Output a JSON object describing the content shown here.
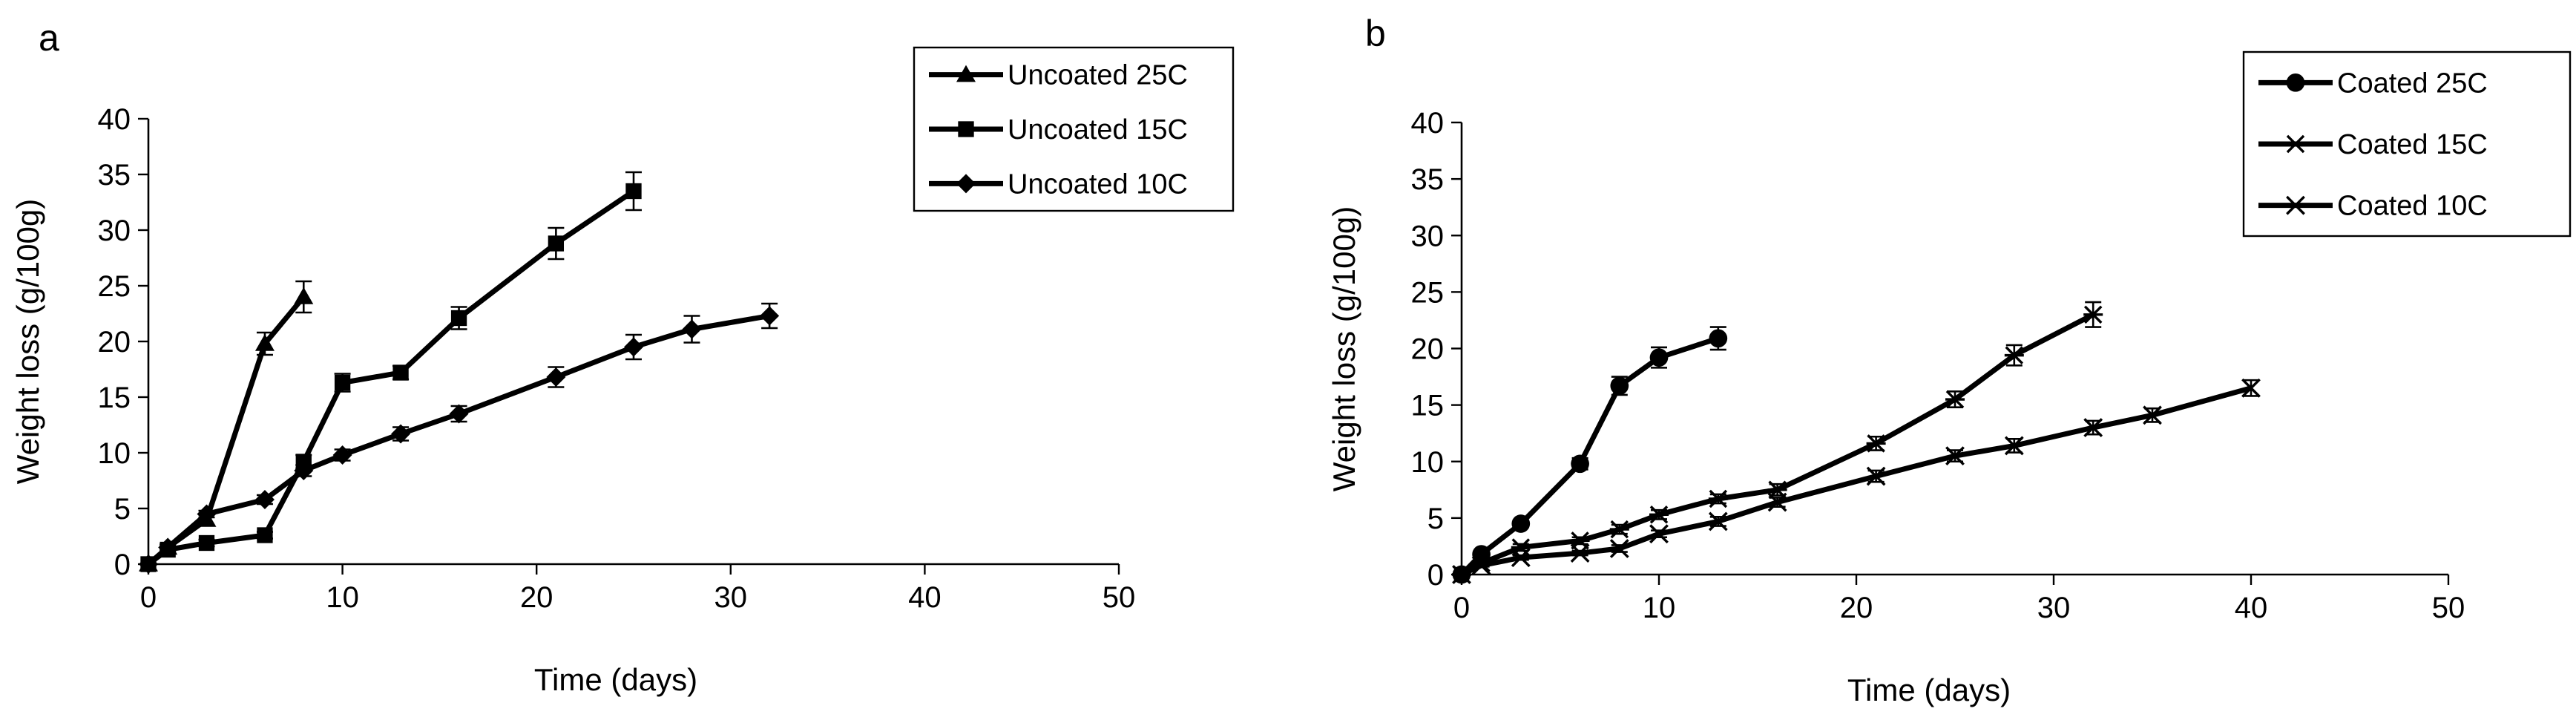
{
  "chart_data": [
    {
      "type": "line",
      "panel": "a",
      "xlabel": "Time (days)",
      "ylabel": "Weight loss (g/100g)",
      "xlim": [
        0,
        50
      ],
      "ylim": [
        0,
        40
      ],
      "xticks": [
        0,
        10,
        20,
        30,
        40,
        50
      ],
      "yticks": [
        0,
        5,
        10,
        15,
        20,
        25,
        30,
        35,
        40
      ],
      "grid": false,
      "legend_position": "top-right",
      "series": [
        {
          "name": "Uncoated 25C",
          "marker": "triangle",
          "x": [
            0,
            1,
            3,
            6,
            8
          ],
          "y": [
            0,
            1.5,
            4,
            19.8,
            24
          ],
          "err": [
            0,
            0.3,
            0.5,
            1.0,
            1.4
          ]
        },
        {
          "name": "Uncoated 15C",
          "marker": "square",
          "x": [
            0,
            1,
            3,
            6,
            8,
            10,
            13,
            16,
            21,
            25
          ],
          "y": [
            0,
            1.3,
            1.9,
            2.6,
            9.2,
            16.3,
            17.2,
            22.1,
            28.8,
            33.5
          ],
          "err": [
            0,
            0.2,
            0.3,
            0.3,
            0.6,
            0.8,
            0.6,
            1.0,
            1.4,
            1.7
          ]
        },
        {
          "name": "Uncoated 10C",
          "marker": "diamond",
          "x": [
            0,
            1,
            3,
            6,
            8,
            10,
            13,
            16,
            21,
            25,
            28,
            32
          ],
          "y": [
            0,
            1.5,
            4.5,
            5.8,
            8.4,
            9.8,
            11.7,
            13.5,
            16.8,
            19.5,
            21.1,
            22.3
          ],
          "err": [
            0,
            0.2,
            0.3,
            0.4,
            0.5,
            0.5,
            0.6,
            0.7,
            0.9,
            1.1,
            1.2,
            1.1
          ]
        }
      ]
    },
    {
      "type": "line",
      "panel": "b",
      "xlabel": "Time (days)",
      "ylabel": "Weight loss (g/100g)",
      "xlim": [
        0,
        50
      ],
      "ylim": [
        0,
        40
      ],
      "xticks": [
        0,
        10,
        20,
        30,
        40,
        50
      ],
      "yticks": [
        0,
        5,
        10,
        15,
        20,
        25,
        30,
        35,
        40
      ],
      "grid": false,
      "legend_position": "top-right",
      "series": [
        {
          "name": "Coated 25C",
          "marker": "circle",
          "x": [
            0,
            1,
            3,
            6,
            8,
            10,
            13
          ],
          "y": [
            0,
            1.8,
            4.5,
            9.8,
            16.7,
            19.2,
            20.9
          ],
          "err": [
            0,
            0.2,
            0.3,
            0.5,
            0.8,
            0.9,
            1.0
          ]
        },
        {
          "name": "Coated 15C",
          "marker": "asterisk",
          "x": [
            0,
            1,
            3,
            6,
            8,
            10,
            13,
            16,
            21,
            25,
            28,
            32
          ],
          "y": [
            0,
            1.0,
            2.4,
            3.0,
            4.0,
            5.3,
            6.7,
            7.5,
            11.6,
            15.5,
            19.4,
            23.0
          ],
          "err": [
            0,
            0.2,
            0.3,
            0.3,
            0.4,
            0.4,
            0.4,
            0.5,
            0.6,
            0.7,
            0.9,
            1.1
          ]
        },
        {
          "name": "Coated 10C",
          "marker": "x",
          "x": [
            0,
            1,
            3,
            6,
            8,
            10,
            13,
            16,
            21,
            25,
            28,
            32,
            35,
            40
          ],
          "y": [
            0,
            0.8,
            1.5,
            1.9,
            2.3,
            3.6,
            4.7,
            6.4,
            8.7,
            10.5,
            11.4,
            13.0,
            14.1,
            16.5
          ],
          "err": [
            0,
            0.1,
            0.2,
            0.2,
            0.3,
            0.3,
            0.4,
            0.4,
            0.5,
            0.5,
            0.6,
            0.6,
            0.6,
            0.7
          ]
        }
      ]
    }
  ]
}
